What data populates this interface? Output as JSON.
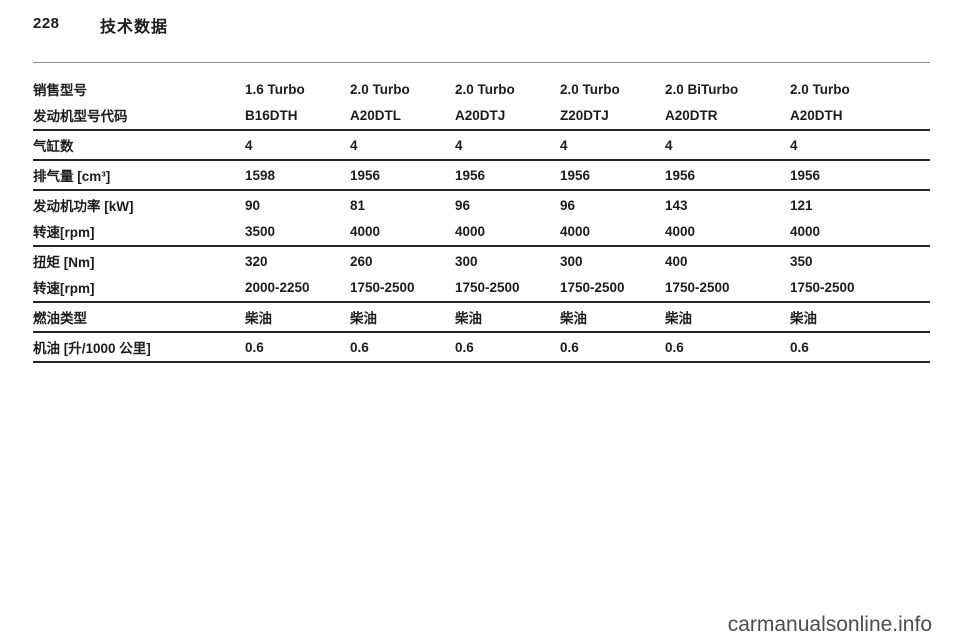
{
  "page": {
    "number": "228",
    "title": "技术数据"
  },
  "watermark": "carmanualsonline.info",
  "table": {
    "rows": [
      {
        "label": "销售型号",
        "values": [
          "1.6 Turbo",
          "2.0 Turbo",
          "2.0 Turbo",
          "2.0 Turbo",
          "2.0 BiTurbo",
          "2.0 Turbo"
        ]
      },
      {
        "label": "发动机型号代码",
        "values": [
          "B16DTH",
          "A20DTL",
          "A20DTJ",
          "Z20DTJ",
          "A20DTR",
          "A20DTH"
        ]
      },
      {
        "label": "气缸数",
        "values": [
          "4",
          "4",
          "4",
          "4",
          "4",
          "4"
        ]
      },
      {
        "label": "排气量 [cm³]",
        "values": [
          "1598",
          "1956",
          "1956",
          "1956",
          "1956",
          "1956"
        ]
      },
      {
        "label": "发动机功率 [kW]",
        "values": [
          "90",
          "81",
          "96",
          "96",
          "143",
          "121"
        ]
      },
      {
        "label": "转速[rpm]",
        "values": [
          "3500",
          "4000",
          "4000",
          "4000",
          "4000",
          "4000"
        ]
      },
      {
        "label": "扭矩 [Nm]",
        "values": [
          "320",
          "260",
          "300",
          "300",
          "400",
          "350"
        ]
      },
      {
        "label": "转速[rpm]",
        "values": [
          "2000-2250",
          "1750-2500",
          "1750-2500",
          "1750-2500",
          "1750-2500",
          "1750-2500"
        ]
      },
      {
        "label": "燃油类型",
        "values": [
          "柴油",
          "柴油",
          "柴油",
          "柴油",
          "柴油",
          "柴油"
        ]
      },
      {
        "label": "机油 [升/1000 公里]",
        "values": [
          "0.6",
          "0.6",
          "0.6",
          "0.6",
          "0.6",
          "0.6"
        ]
      }
    ]
  }
}
